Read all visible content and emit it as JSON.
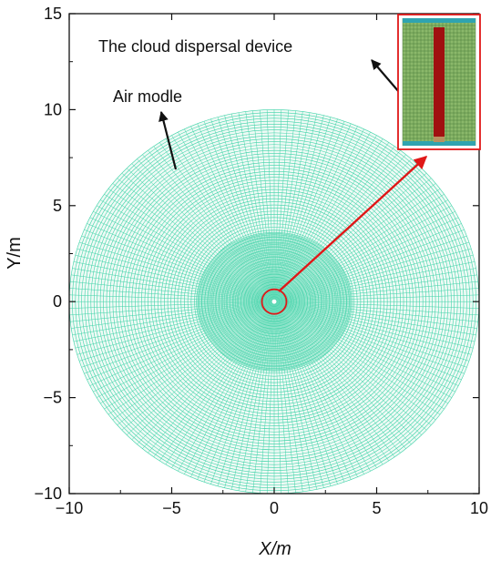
{
  "figure": {
    "x_axis_label": "X/m",
    "y_axis_label": "Y/m",
    "annotations": {
      "air_model": "Air modle",
      "device": "The cloud dispersal device"
    }
  },
  "chart_data": {
    "type": "diagram",
    "xlim": [
      -10,
      10
    ],
    "ylim": [
      -10,
      15
    ],
    "x_ticks": [
      -10,
      -5,
      0,
      5,
      10
    ],
    "y_ticks": [
      -10,
      -5,
      0,
      5,
      10,
      15
    ],
    "x_tick_labels": [
      "−10",
      "−5",
      "0",
      "5",
      "10"
    ],
    "y_tick_labels": [
      "−10",
      "−5",
      "0",
      "5",
      "10",
      "15"
    ],
    "outer_radius": 10,
    "inner_dense_radius": 3.8,
    "center_marker_radius": 0.6,
    "mesh_color": "#3fd3a8",
    "highlight_color": "#e01818",
    "arrow_color": "#111111"
  }
}
